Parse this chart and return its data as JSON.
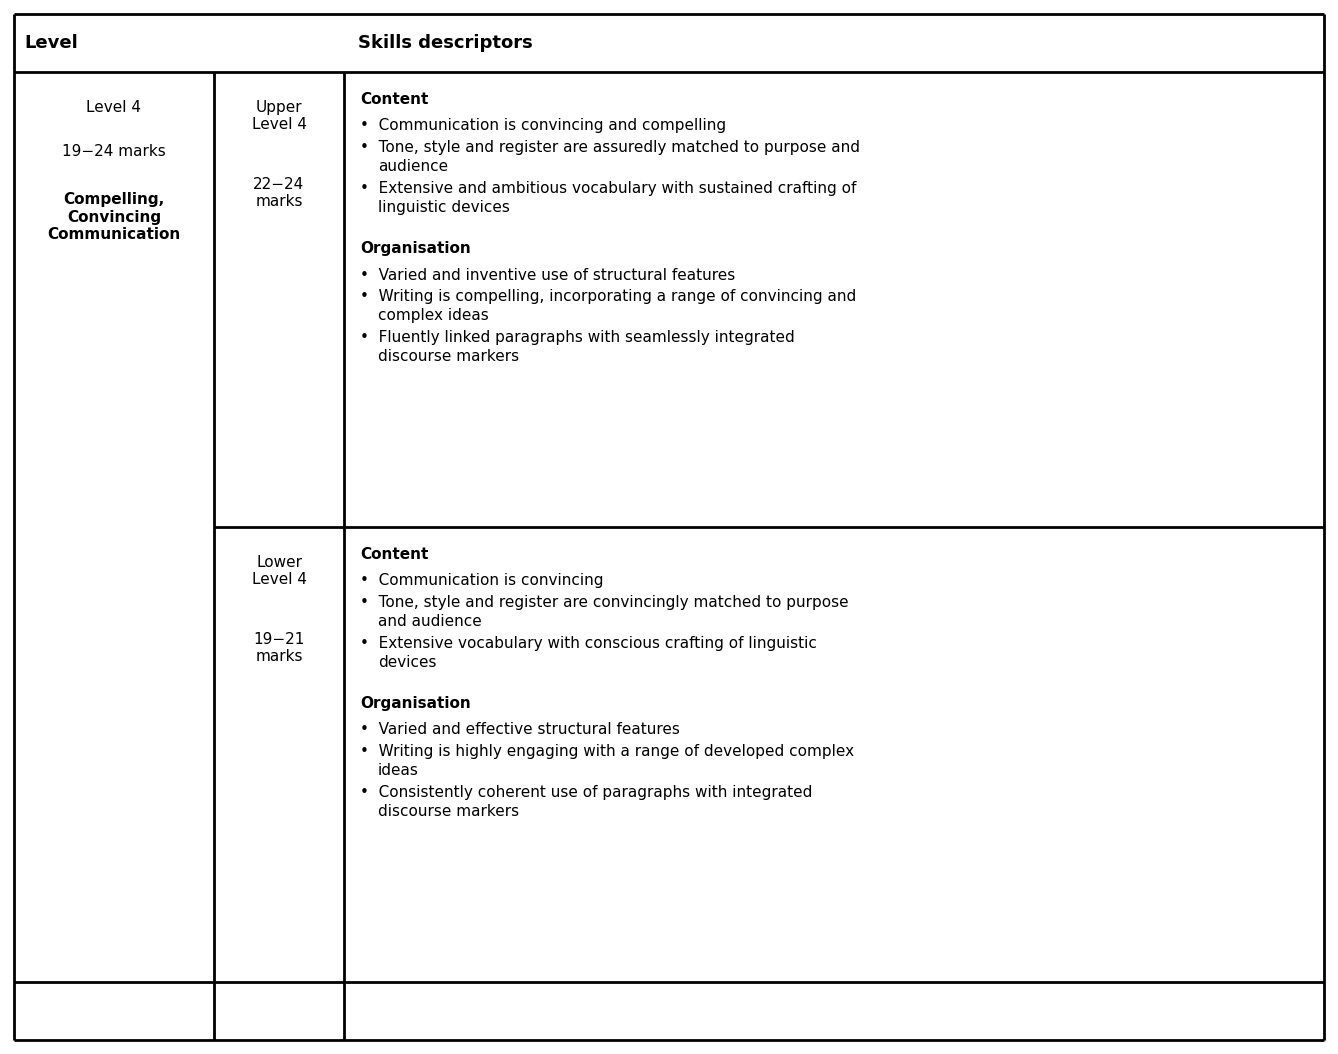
{
  "background_color": "#ffffff",
  "line_color": "#000000",
  "line_width": 2.0,
  "header_labels": [
    "Level",
    "",
    "Skills descriptors"
  ],
  "font_size_header": 13,
  "font_size_body": 11,
  "col3_row1_upper_title": "Content",
  "col3_row1_upper_bullets": [
    "Communication is convincing and compelling",
    "Tone, style and register are assuredly matched to purpose and\naudience",
    "Extensive and ambitious vocabulary with sustained crafting of\nlinguistic devices"
  ],
  "col3_row1_org_title": "Organisation",
  "col3_row1_org_bullets": [
    "Varied and inventive use of structural features",
    "Writing is compelling, incorporating a range of convincing and\ncomplex ideas",
    "Fluently linked paragraphs with seamlessly integrated\ndiscourse markers"
  ],
  "col3_row2_upper_title": "Content",
  "col3_row2_upper_bullets": [
    "Communication is convincing",
    "Tone, style and register are convincingly matched to purpose\nand audience",
    "Extensive vocabulary with conscious crafting of linguistic\ndevices"
  ],
  "col3_row2_org_title": "Organisation",
  "col3_row2_org_bullets": [
    "Varied and effective structural features",
    "Writing is highly engaging with a range of developed complex\nideas",
    "Consistently coherent use of paragraphs with integrated\ndiscourse markers"
  ]
}
